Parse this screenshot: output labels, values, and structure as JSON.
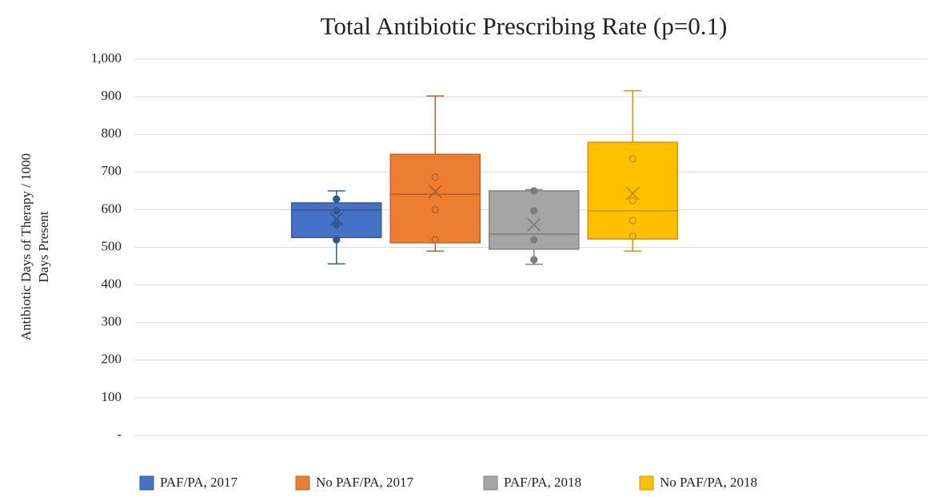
{
  "chart_data": {
    "type": "box",
    "title": "Total Antibiotic Prescribing Rate (p=0.1)",
    "ylabel": [
      "Antibiotic Days of Therapy / 1000",
      "Days Present"
    ],
    "ylim": [
      0,
      1000
    ],
    "yticks": [
      {
        "value": 0,
        "label": "-"
      },
      100,
      200,
      300,
      400,
      500,
      600,
      700,
      800,
      900,
      {
        "value": 1000,
        "label": "1,000"
      }
    ],
    "grid": true,
    "legend": "bottom",
    "series": [
      {
        "name": "PAF/PA, 2017",
        "color": "#4472c4",
        "min": 456,
        "q1": 526,
        "median": 599,
        "q3": 618,
        "max": 650,
        "mean": 575,
        "points": [
          628,
          597,
          560,
          520
        ]
      },
      {
        "name": "No PAF/PA, 2017",
        "color": "#ed7d31",
        "min": 490,
        "q1": 512,
        "median": 641,
        "q3": 747,
        "max": 902,
        "mean": 648,
        "points": [
          686,
          600,
          520
        ]
      },
      {
        "name": "PAF/PA, 2018",
        "color": "#a5a5a5",
        "min": 455,
        "q1": 495,
        "median": 535,
        "q3": 650,
        "max": 653,
        "mean": 560,
        "points": [
          650,
          597,
          520,
          467
        ]
      },
      {
        "name": "No PAF/PA, 2018",
        "color": "#ffc000",
        "min": 490,
        "q1": 522,
        "median": 597,
        "q3": 779,
        "max": 916,
        "mean": 643,
        "points": [
          735,
          624,
          571,
          529
        ]
      }
    ]
  }
}
